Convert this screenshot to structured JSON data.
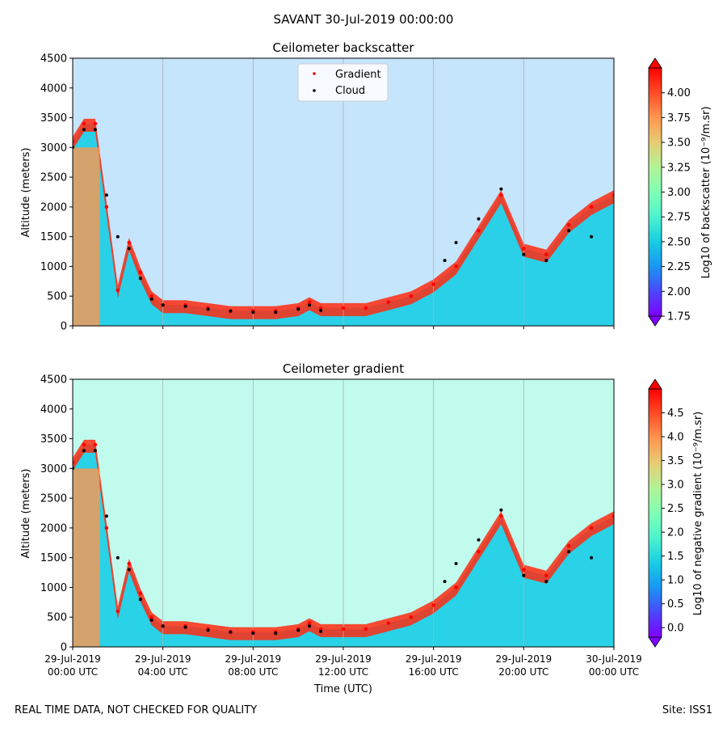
{
  "header": {
    "title": "SAVANT 30-Jul-2019 00:00:00"
  },
  "footer": {
    "note": "REAL TIME DATA, NOT CHECKED FOR QUALITY",
    "site": "Site: ISS1"
  },
  "colors": {
    "gradient_marker": "#ff0000",
    "cloud_marker": "#000000",
    "rainbow": [
      "#8000ff",
      "#4b47fa",
      "#1996f3",
      "#18cde4",
      "#4df3ce",
      "#80ffb4",
      "#b2f396",
      "#e6cd73",
      "#ff964f",
      "#ff4d27",
      "#ff0000"
    ]
  },
  "chart_data": [
    {
      "type": "heatmap",
      "title": "Ceilometer backscatter",
      "ylabel": "Altitude (meters)",
      "xlabel": "",
      "ylim": [
        0,
        4500
      ],
      "xlim_hours": [
        0,
        24
      ],
      "yticks": [
        "0",
        "500",
        "1000",
        "1500",
        "2000",
        "2500",
        "3000",
        "3500",
        "4000",
        "4500"
      ],
      "legend": {
        "location": "upper-center",
        "entries": [
          "Gradient",
          "Cloud"
        ]
      },
      "colorbar": {
        "label": "Log10 of backscatter (10⁻⁹/m.sr)",
        "range": [
          1.75,
          4.25
        ],
        "ticks": [
          "1.75",
          "2.00",
          "2.25",
          "2.50",
          "2.75",
          "3.00",
          "3.25",
          "3.50",
          "3.75",
          "4.00"
        ]
      },
      "series": [
        {
          "name": "Gradient",
          "hours": [
            0,
            0.5,
            1,
            1.5,
            2,
            2.5,
            3,
            3.5,
            4,
            5,
            6,
            7,
            8,
            9,
            10,
            10.5,
            11,
            12,
            13,
            14,
            15,
            16,
            17,
            18,
            19,
            20,
            21,
            22,
            23,
            24
          ],
          "values": [
            3100,
            3400,
            3400,
            2000,
            600,
            1400,
            900,
            500,
            350,
            350,
            300,
            250,
            250,
            250,
            300,
            400,
            300,
            300,
            300,
            400,
            500,
            700,
            1000,
            1600,
            2200,
            1300,
            1200,
            1700,
            2000,
            2200
          ]
        },
        {
          "name": "Cloud",
          "hours": [
            0,
            0.5,
            1,
            1.5,
            2,
            2.5,
            3,
            3.5,
            4,
            5,
            6,
            7,
            8,
            9,
            10,
            10.5,
            11,
            16.5,
            17,
            18,
            19,
            20,
            21,
            22,
            23
          ],
          "values": [
            3000,
            3300,
            3300,
            2200,
            1500,
            1300,
            800,
            450,
            350,
            330,
            280,
            250,
            230,
            230,
            280,
            350,
            260,
            1100,
            1400,
            1800,
            2300,
            1200,
            1100,
            1600,
            1500
          ]
        }
      ]
    },
    {
      "type": "heatmap",
      "title": "Ceilometer gradient",
      "ylabel": "Altitude (meters)",
      "xlabel": "Time (UTC)",
      "ylim": [
        0,
        4500
      ],
      "xlim_hours": [
        0,
        24
      ],
      "yticks": [
        "0",
        "500",
        "1000",
        "1500",
        "2000",
        "2500",
        "3000",
        "3500",
        "4000",
        "4500"
      ],
      "xticks": [
        {
          "line1": "29-Jul-2019",
          "line2": "00:00 UTC"
        },
        {
          "line1": "29-Jul-2019",
          "line2": "04:00 UTC"
        },
        {
          "line1": "29-Jul-2019",
          "line2": "08:00 UTC"
        },
        {
          "line1": "29-Jul-2019",
          "line2": "12:00 UTC"
        },
        {
          "line1": "29-Jul-2019",
          "line2": "16:00 UTC"
        },
        {
          "line1": "29-Jul-2019",
          "line2": "20:00 UTC"
        },
        {
          "line1": "30-Jul-2019",
          "line2": "00:00 UTC"
        }
      ],
      "colorbar": {
        "label": "Log10 of negative gradient (10⁻⁹/m.sr)",
        "range": [
          -0.2,
          5.0
        ],
        "ticks": [
          "0.0",
          "0.5",
          "1.0",
          "1.5",
          "2.0",
          "2.5",
          "3.0",
          "3.5",
          "4.0",
          "4.5"
        ]
      },
      "series": [
        {
          "name": "Gradient",
          "hours": [
            0,
            0.5,
            1,
            1.5,
            2,
            2.5,
            3,
            3.5,
            4,
            5,
            6,
            7,
            8,
            9,
            10,
            10.5,
            11,
            12,
            13,
            14,
            15,
            16,
            17,
            18,
            19,
            20,
            21,
            22,
            23,
            24
          ],
          "values": [
            3100,
            3400,
            3400,
            2000,
            600,
            1400,
            900,
            500,
            350,
            350,
            300,
            250,
            250,
            250,
            300,
            400,
            300,
            300,
            300,
            400,
            500,
            700,
            1000,
            1600,
            2200,
            1300,
            1200,
            1700,
            2000,
            2200
          ]
        },
        {
          "name": "Cloud",
          "hours": [
            0,
            0.5,
            1,
            1.5,
            2,
            2.5,
            3,
            3.5,
            4,
            5,
            6,
            7,
            8,
            9,
            10,
            10.5,
            11,
            16.5,
            17,
            18,
            19,
            20,
            21,
            22,
            23
          ],
          "values": [
            3000,
            3300,
            3300,
            2200,
            1500,
            1300,
            800,
            450,
            350,
            330,
            280,
            250,
            230,
            230,
            280,
            350,
            260,
            1100,
            1400,
            1800,
            2300,
            1200,
            1100,
            1600,
            1500
          ]
        }
      ]
    }
  ]
}
